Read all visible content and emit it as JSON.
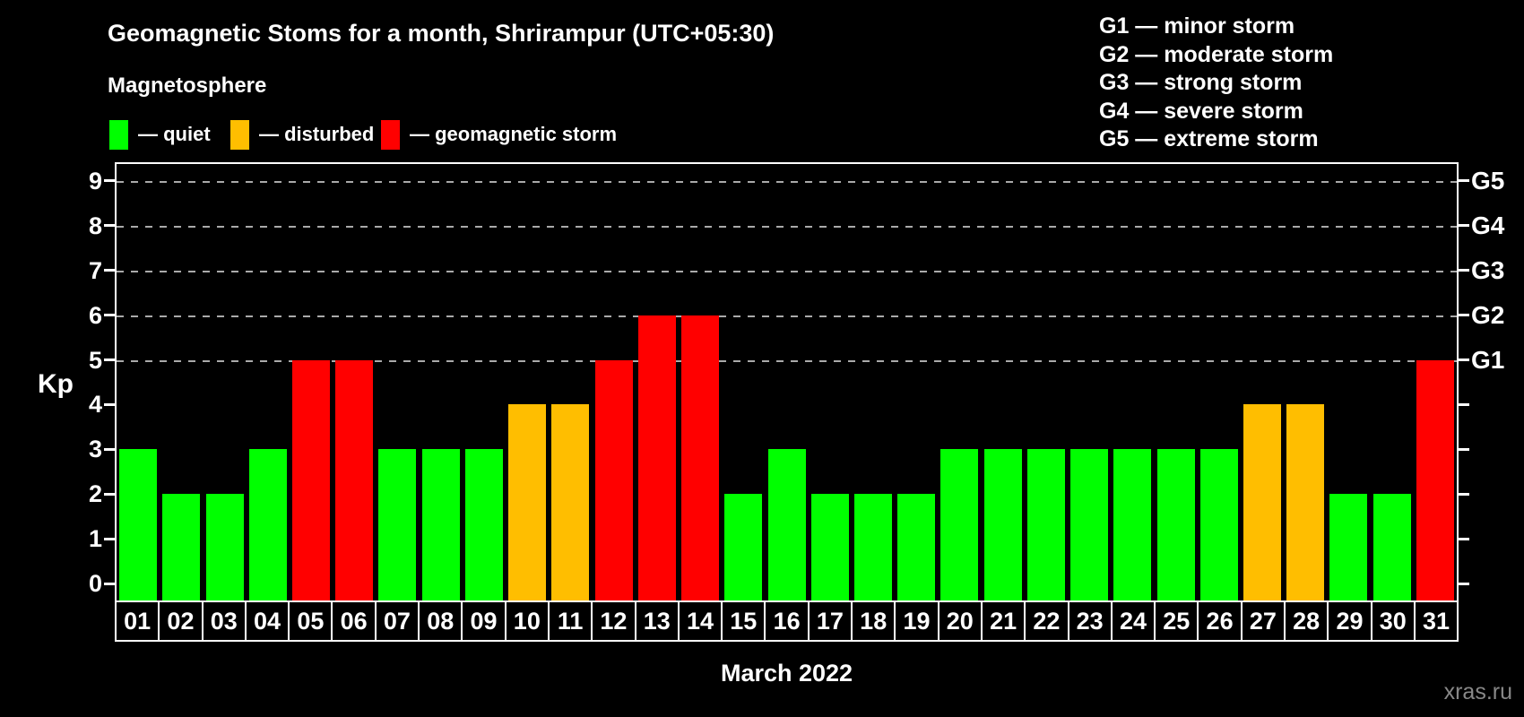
{
  "header": {
    "title": "Geomagnetic Stoms for a month, Shrirampur (UTC+05:30)"
  },
  "magnetosphere_legend": {
    "heading": "Magnetosphere",
    "items": [
      {
        "label": "— quiet",
        "color": "#00ff00"
      },
      {
        "label": "— disturbed",
        "color": "#ffbe00"
      },
      {
        "label": "— geomagnetic storm",
        "color": "#ff0000"
      }
    ]
  },
  "g_legend": {
    "lines": [
      "G1 — minor storm",
      "G2 — moderate storm",
      "G3 — strong storm",
      "G4 — severe storm",
      "G5 — extreme storm"
    ]
  },
  "watermark": "xras.ru",
  "chart_data": {
    "type": "bar",
    "title": "Geomagnetic Stoms for a month, Shrirampur (UTC+05:30)",
    "xlabel": "March 2022",
    "ylabel": "Kp",
    "ylim": [
      -0.4,
      9.4
    ],
    "yticks": [
      0,
      1,
      2,
      3,
      4,
      5,
      6,
      7,
      8,
      9
    ],
    "gridline_kp": [
      5,
      6,
      7,
      8,
      9
    ],
    "grid_style": "dashed gray horizontal lines at storm levels",
    "right_axis": [
      {
        "kp": 5,
        "label": "G1"
      },
      {
        "kp": 6,
        "label": "G2"
      },
      {
        "kp": 7,
        "label": "G3"
      },
      {
        "kp": 8,
        "label": "G4"
      },
      {
        "kp": 9,
        "label": "G5"
      }
    ],
    "categories": [
      "01",
      "02",
      "03",
      "04",
      "05",
      "06",
      "07",
      "08",
      "09",
      "10",
      "11",
      "12",
      "13",
      "14",
      "15",
      "16",
      "17",
      "18",
      "19",
      "20",
      "21",
      "22",
      "23",
      "24",
      "25",
      "26",
      "27",
      "28",
      "29",
      "30",
      "31"
    ],
    "values": [
      3,
      2,
      2,
      3,
      5,
      5,
      3,
      3,
      3,
      4,
      4,
      5,
      6,
      6,
      2,
      3,
      2,
      2,
      2,
      3,
      3,
      3,
      3,
      3,
      3,
      3,
      4,
      4,
      2,
      2,
      5
    ],
    "coloring_rule": {
      "quiet_max_kp": 3,
      "disturbed_kp": 4,
      "storm_min_kp": 5
    },
    "colors": {
      "quiet": "#00ff00",
      "disturbed": "#ffbe00",
      "storm": "#ff0000"
    },
    "legend_position": "top-left",
    "background": "#000000"
  }
}
